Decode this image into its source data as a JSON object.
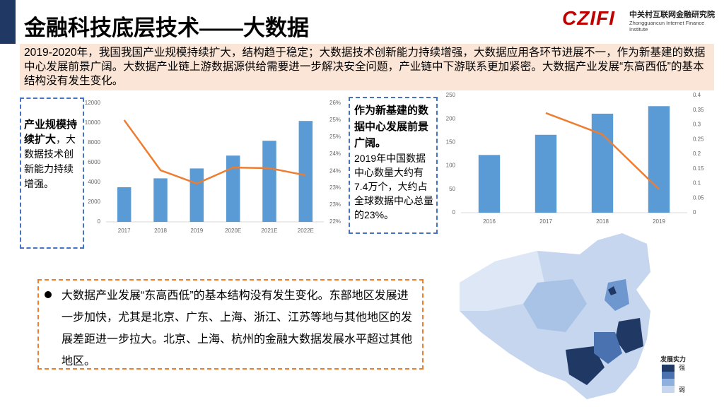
{
  "title": "金融科技底层技术——大数据",
  "logo": {
    "mark": "CZIFI",
    "name_cn": "中关村互联网金融研究院",
    "name_en": "Zhongguancun Internet Finance Institute"
  },
  "intro": "2019-2020年，我国我国产业规模持续扩大，结构趋于稳定；大数据技术创新能力持续增强，大数据应用各环节进展不一，作为新基建的数据中心发展前景广阔。大数据产业链上游数据源供给需要进一步解决安全问题，产业链中下游联系更加紧密。大数据产业发展“东高西低”的基本结构没有发生变化。",
  "box1": {
    "heading": "产业规模持续扩大",
    "comma": "，",
    "body": "大数据技术创新能力持续增强。"
  },
  "box2": {
    "heading": "作为新基建的数据中心发展前景广阔。",
    "body": "2019年中国数据中心数量大约有7.4万个，大约占全球数据中心总量的23%。"
  },
  "bullet": "大数据产业发展“东高西低”的基本结构没有发生变化。东部地区发展进一步加快，尤其是北京、广东、上海、浙江、江苏等地与其他地区的发展差距进一步拉大。北京、上海、杭州的金融大数据发展水平超过其他地区。",
  "map_legend": {
    "title": "发展实力",
    "high": "强",
    "low": "弱"
  },
  "chart_data": [
    {
      "type": "bar",
      "categories": [
        "2017",
        "2018",
        "2019",
        "2020E",
        "2021E",
        "2022E"
      ],
      "series": [
        {
          "color": "#5b9bd5",
          "values": [
            3500,
            4400,
            5400,
            6700,
            8200,
            10200
          ]
        },
        {
          "type": "line",
          "axis": "y2",
          "color": "#ed7d31",
          "values": [
            25.43,
            23.74,
            23.29,
            23.83,
            23.81,
            23.57
          ]
        }
      ],
      "ylim": [
        0,
        12000
      ],
      "yticks": [
        0,
        2000,
        4000,
        6000,
        8000,
        10000,
        12000
      ],
      "y2lim": [
        22,
        26
      ],
      "y2ticks": [
        {
          "value": 22,
          "label": "22%"
        },
        {
          "value": 22.57,
          "label": "23%"
        },
        {
          "value": 23.14,
          "label": "23%"
        },
        {
          "value": 23.71,
          "label": "24%"
        },
        {
          "value": 24.29,
          "label": "24%"
        },
        {
          "value": 24.86,
          "label": "25%"
        },
        {
          "value": 25.43,
          "label": "25%"
        },
        {
          "value": 26,
          "label": "26%"
        }
      ]
    },
    {
      "type": "bar",
      "categories": [
        "2016",
        "2017",
        "2018",
        "2019"
      ],
      "series": [
        {
          "color": "#5b9bd5",
          "values": [
            123,
            166,
            211,
            227
          ]
        },
        {
          "type": "line",
          "axis": "y2",
          "color": "#ed7d31",
          "values": [
            null,
            0.34,
            0.267,
            0.08
          ]
        }
      ],
      "ylim": [
        0,
        250
      ],
      "yticks": [
        0,
        50,
        100,
        150,
        200,
        250
      ],
      "y2lim": [
        0,
        0.4
      ],
      "y2ticks": [
        0,
        0.05,
        0.1,
        0.15,
        0.2,
        0.25,
        0.3,
        0.35,
        0.4
      ]
    }
  ]
}
